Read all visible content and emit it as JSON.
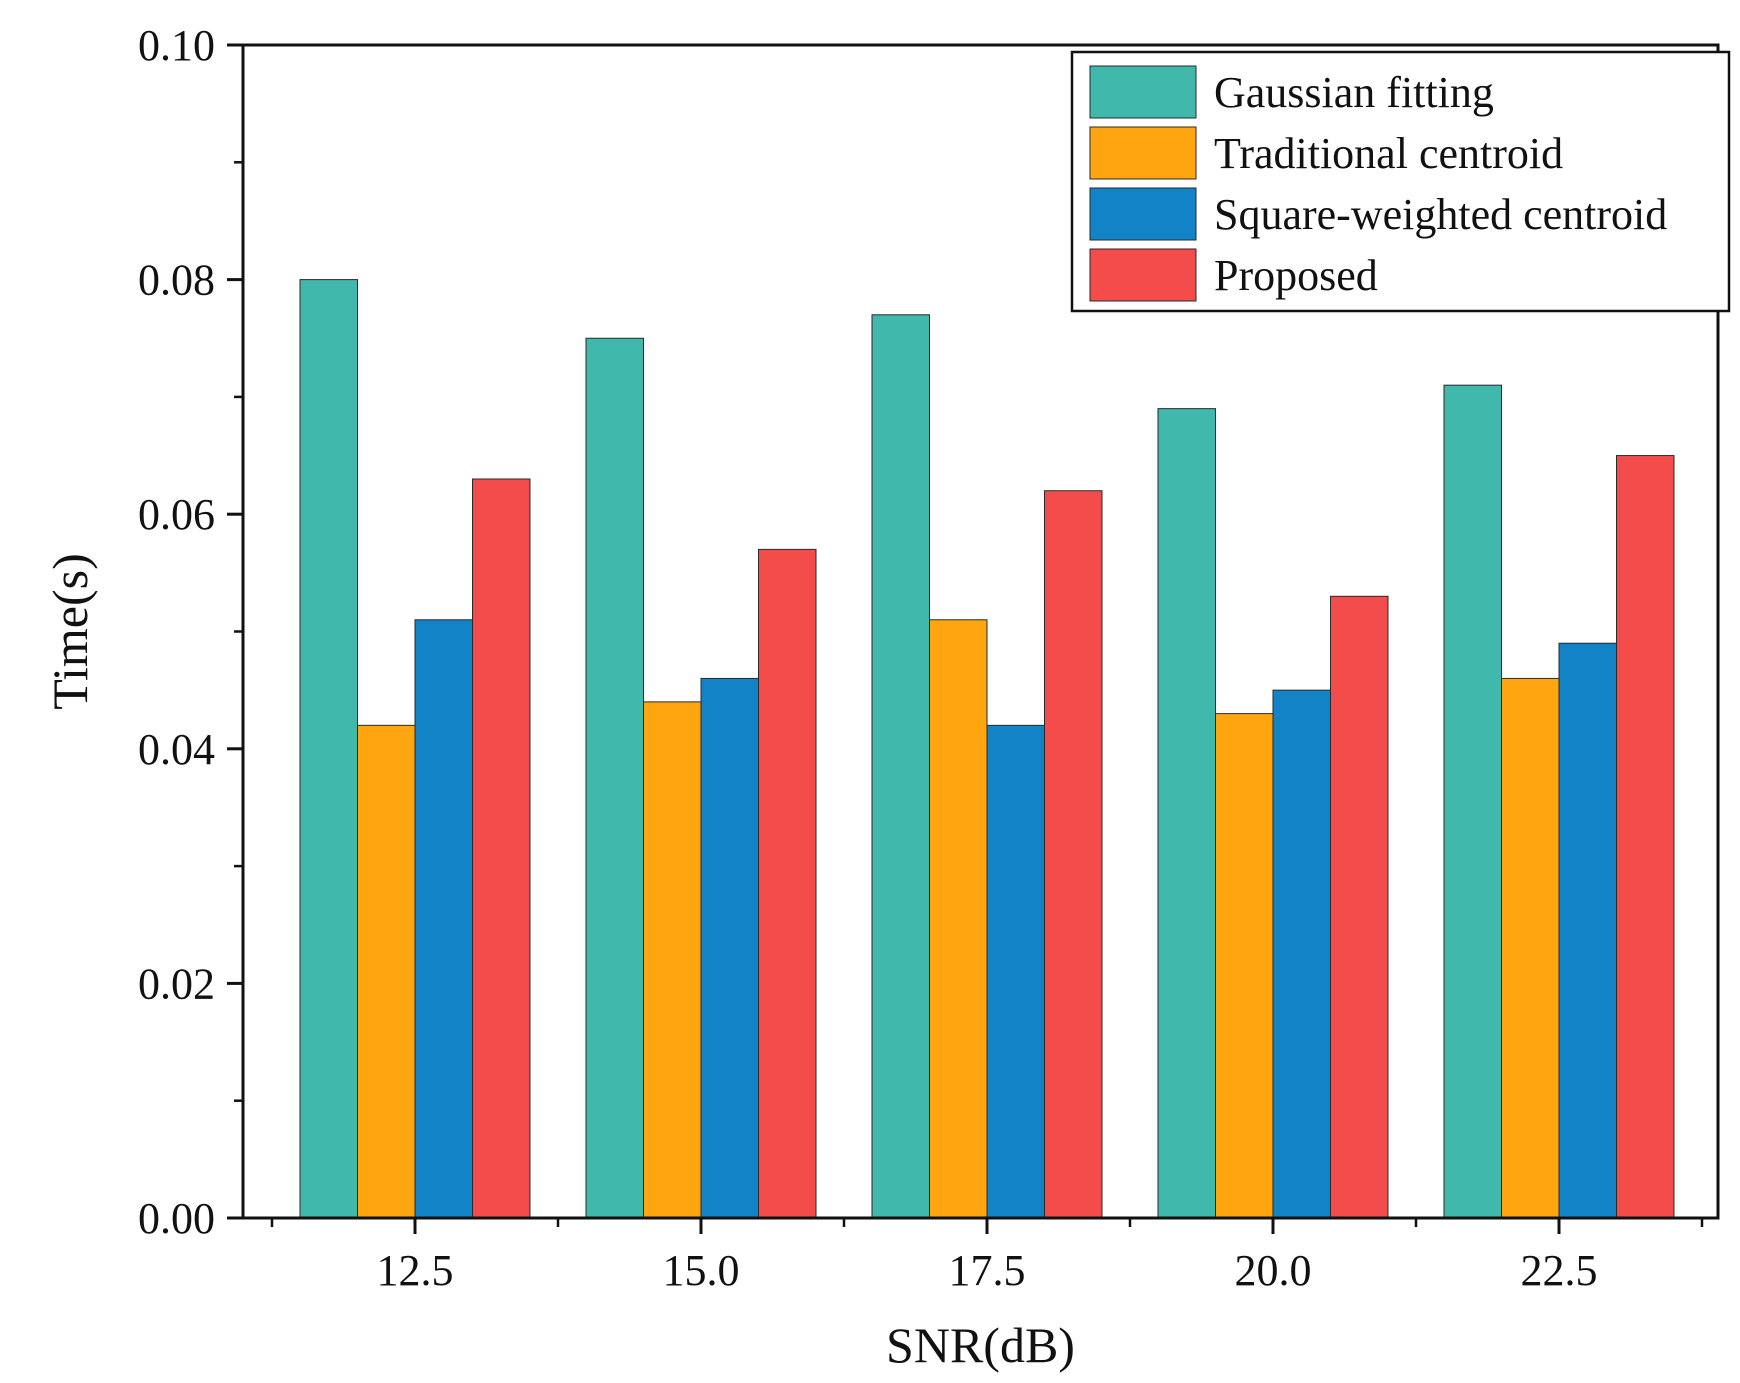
{
  "chart_data": {
    "type": "bar",
    "title": "",
    "xlabel": "SNR(dB)",
    "ylabel": "Time(s)",
    "ylim": [
      0,
      0.1
    ],
    "yticks": [
      "0.00",
      "0.02",
      "0.04",
      "0.06",
      "0.08",
      "0.10"
    ],
    "categories": [
      "12.5",
      "15.0",
      "17.5",
      "20.0",
      "22.5"
    ],
    "series": [
      {
        "name": "Gaussian fitting",
        "color": "#40b8ab",
        "values": [
          0.08,
          0.075,
          0.077,
          0.069,
          0.071
        ]
      },
      {
        "name": "Traditional centroid",
        "color": "#ffa50f",
        "values": [
          0.042,
          0.044,
          0.051,
          0.043,
          0.046
        ]
      },
      {
        "name": "Square-weighted centroid",
        "color": "#1283c6",
        "values": [
          0.051,
          0.046,
          0.042,
          0.045,
          0.049
        ]
      },
      {
        "name": "Proposed",
        "color": "#f44b4b",
        "values": [
          0.063,
          0.057,
          0.062,
          0.053,
          0.065
        ]
      }
    ],
    "legend_position": "top-right",
    "grid": false
  }
}
